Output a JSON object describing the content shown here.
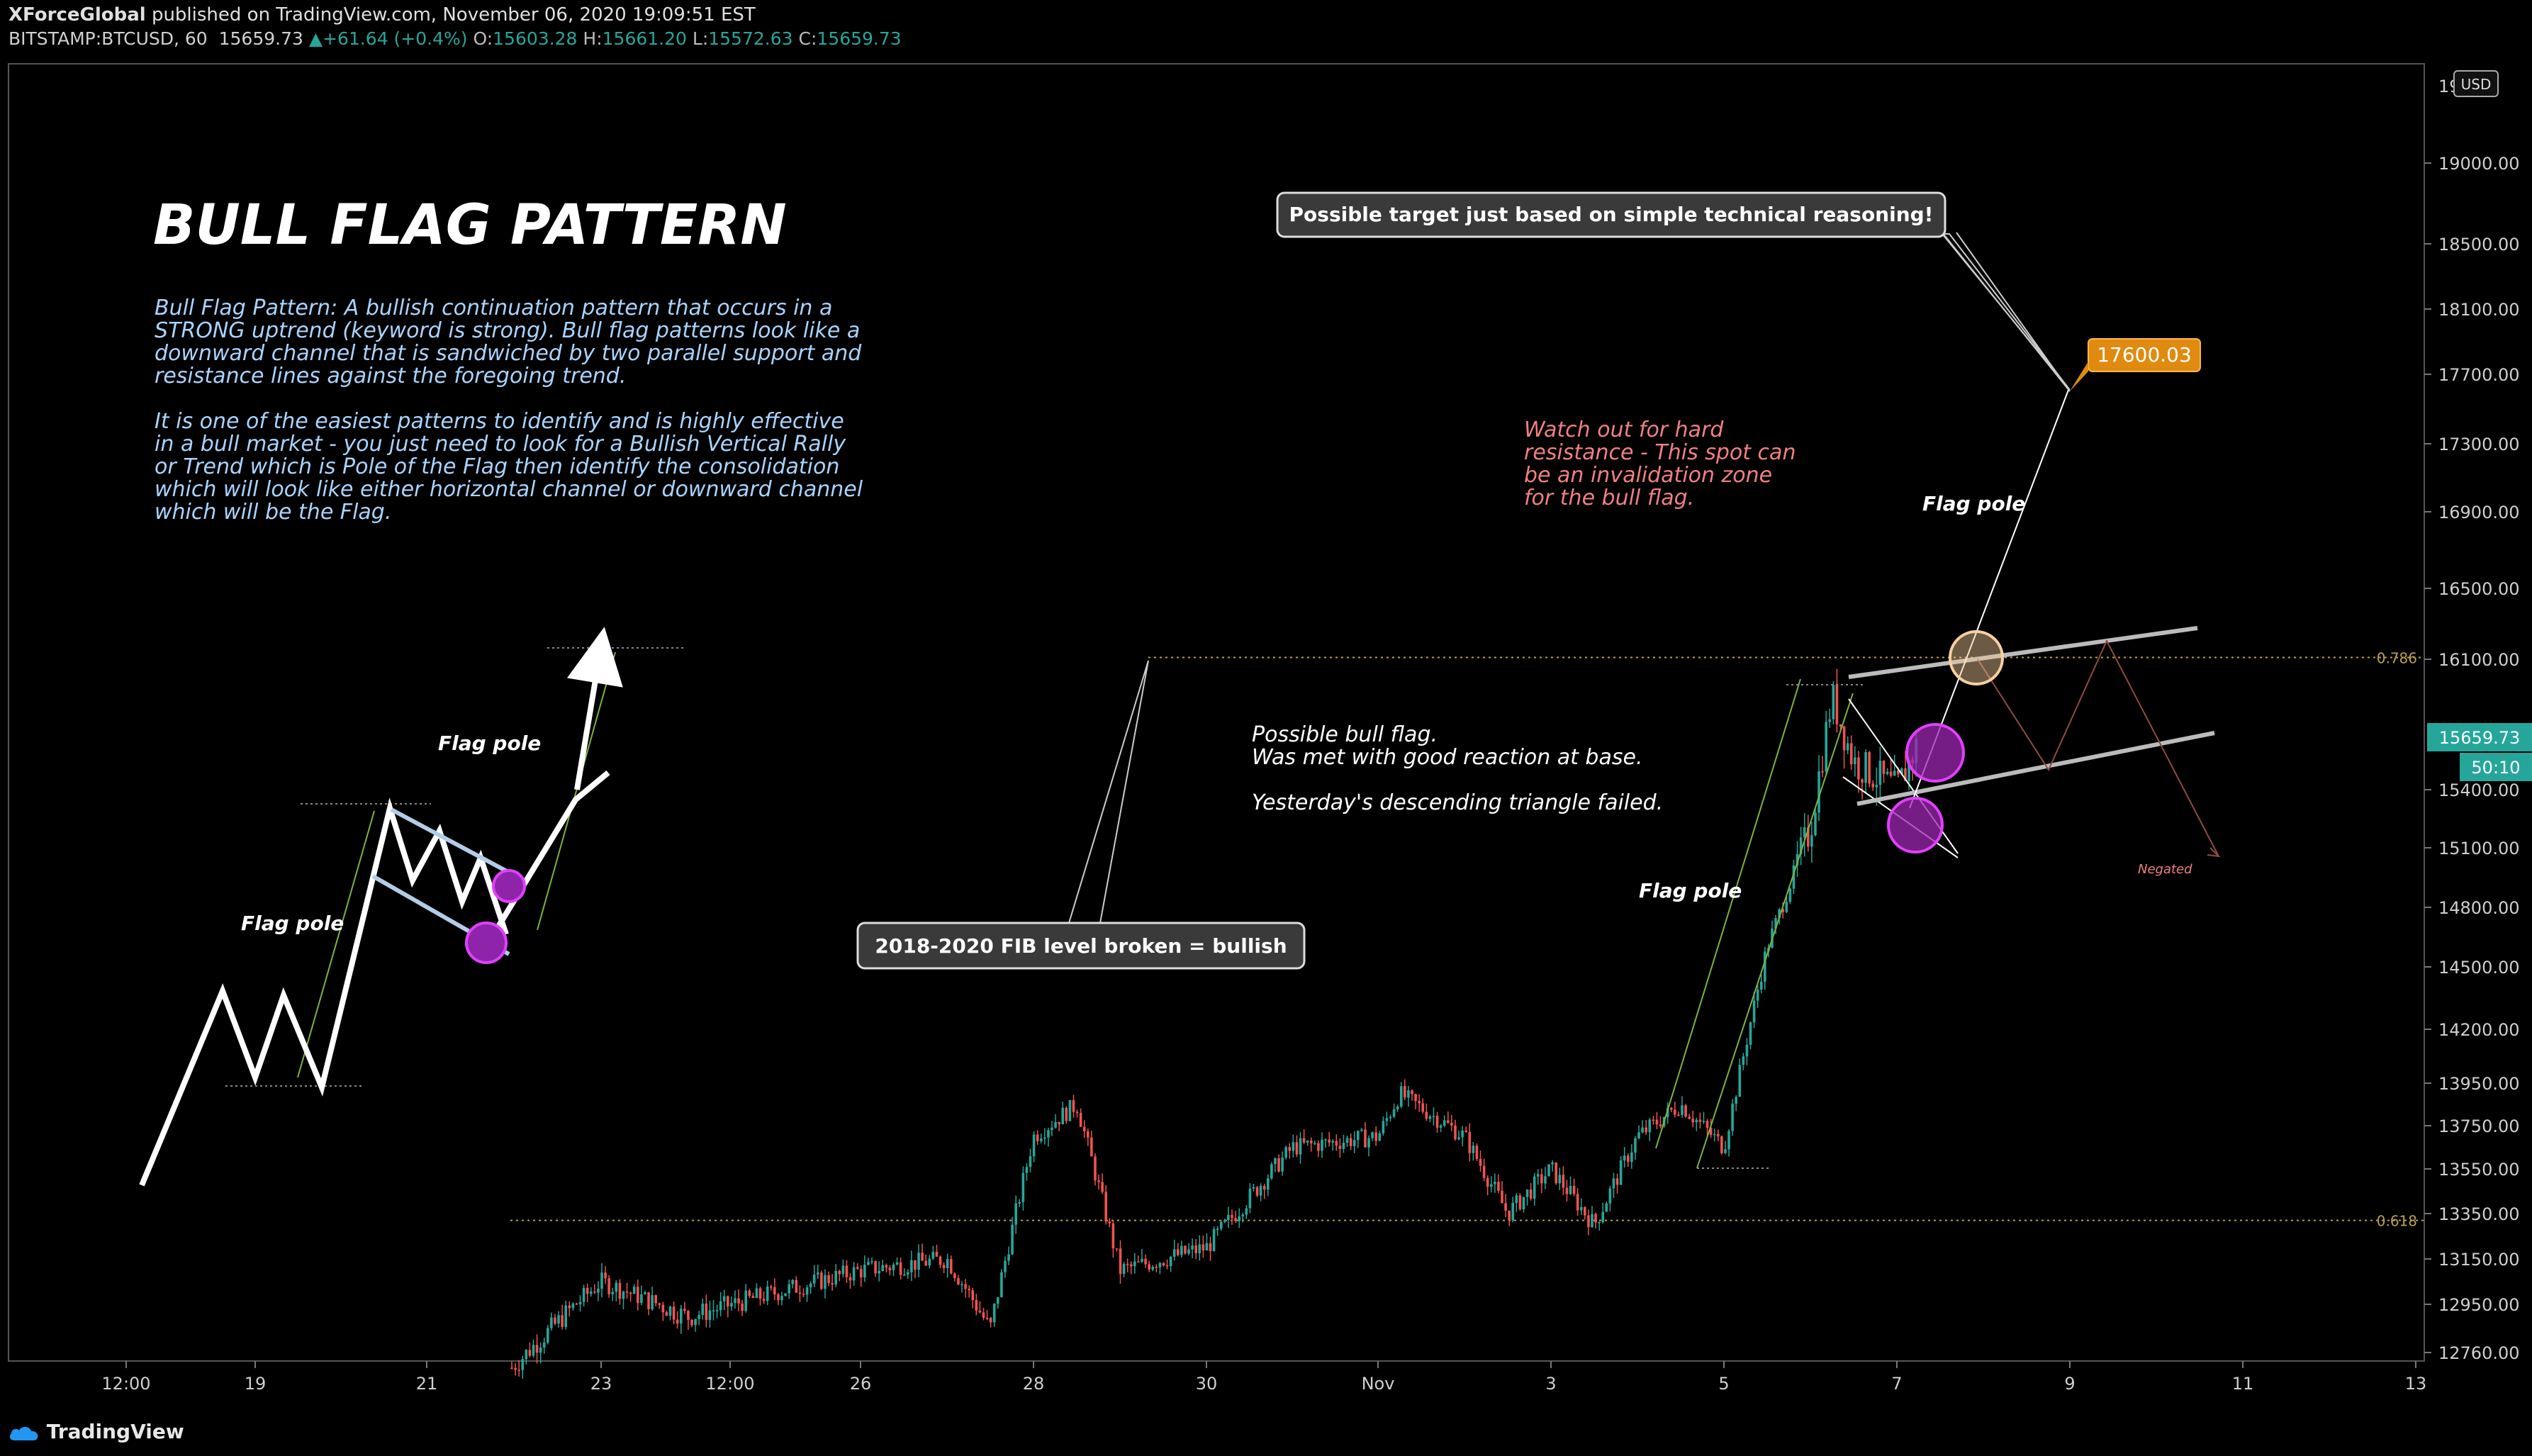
{
  "header": {
    "author": "XForceGlobal",
    "published_text": "published on TradingView.com, November 06, 2020 19:09:51 EST",
    "symbol": "BITSTAMP:BTCUSD, 60",
    "last": "15659.73",
    "change": "+61.64 (+0.4%)",
    "o_label": "O:",
    "o": "15603.28",
    "h_label": "H:",
    "h": "15661.20",
    "l_label": "L:",
    "l": "15572.63",
    "c_label": "C:",
    "c": "15659.73"
  },
  "footer": {
    "brand": "TradingView"
  },
  "colors": {
    "background": "#000000",
    "up": "#26a69a",
    "down": "#ef5350",
    "fib": "#b8a050",
    "target": "#f39c12",
    "highlight_circle": "#e040fb",
    "note_red": "#f08080"
  },
  "chart_data": {
    "type": "candlestick",
    "currency_badge": "USD",
    "y_ticks": [
      "19000.00",
      "18500.00",
      "18100.00",
      "17700.00",
      "17300.00",
      "16900.00",
      "16500.00",
      "16100.00",
      "15400.00",
      "15100.00",
      "14800.00",
      "14500.00",
      "14200.00",
      "13950.00",
      "13750.00",
      "13550.00",
      "13350.00",
      "13150.00",
      "12950.00",
      "12760.00"
    ],
    "y_tick_top_partial": "19",
    "x_ticks": [
      "12:00",
      "19",
      "21",
      "23",
      "12:00",
      "26",
      "28",
      "30",
      "Nov",
      "3",
      "5",
      "7",
      "9",
      "11",
      "13"
    ],
    "price_label": "15659.73",
    "countdown_label": "50:10",
    "fib_levels": [
      {
        "label": "0.786",
        "value": 16110
      },
      {
        "label": "0.618",
        "value": 13320
      }
    ],
    "target": {
      "label": "17600.03",
      "value": 17600.03
    },
    "price_path_keypoints": [
      {
        "t": "Oct 22",
        "price": 12700
      },
      {
        "t": "Oct 23",
        "price": 13050
      },
      {
        "t": "Oct 24",
        "price": 12900
      },
      {
        "t": "Oct 25",
        "price": 13000
      },
      {
        "t": "Oct 26",
        "price": 13100
      },
      {
        "t": "Oct 27",
        "price": 13150
      },
      {
        "t": "Oct 27 12:00",
        "price": 12850
      },
      {
        "t": "Oct 28",
        "price": 13700
      },
      {
        "t": "Oct 28 12:00",
        "price": 13850
      },
      {
        "t": "Oct 29",
        "price": 13100
      },
      {
        "t": "Oct 30",
        "price": 13200
      },
      {
        "t": "Oct 31",
        "price": 13650
      },
      {
        "t": "Nov 1",
        "price": 13700
      },
      {
        "t": "Nov 1 06:00",
        "price": 13900
      },
      {
        "t": "Nov 2",
        "price": 13700
      },
      {
        "t": "Nov 2 12:00",
        "price": 13350
      },
      {
        "t": "Nov 3",
        "price": 13550
      },
      {
        "t": "Nov 3 12:00",
        "price": 13300
      },
      {
        "t": "Nov 4",
        "price": 13700
      },
      {
        "t": "Nov 4 12:00",
        "price": 13850
      },
      {
        "t": "Nov 5",
        "price": 13650
      },
      {
        "t": "Nov 5 12:00",
        "price": 14600
      },
      {
        "t": "Nov 6",
        "price": 15200
      },
      {
        "t": "Nov 6 06:00",
        "price": 15900
      },
      {
        "t": "Nov 6 12:00",
        "price": 15550
      },
      {
        "t": "Nov 7",
        "price": 15400
      },
      {
        "t": "Nov 7 06:00",
        "price": 15660
      }
    ]
  },
  "annotations": {
    "title": "BULL FLAG PATTERN",
    "desc1_lines": [
      "Bull Flag Pattern: A bullish continuation pattern that occurs in a",
      "STRONG uptrend (keyword is strong). Bull flag patterns look like a",
      "downward channel that is sandwiched by two parallel support and",
      "resistance lines against the foregoing trend."
    ],
    "desc2_lines": [
      "It is one of the easiest patterns to identify and is highly effective",
      "in a bull market - you just need to look for a Bullish Vertical Rally",
      "or Trend which is Pole of the Flag then identify the consolidation",
      "which will look like either horizontal channel or downward channel",
      "which will be the Flag."
    ],
    "flag_pole": "Flag pole",
    "target_callout": "Possible target just based on simple technical reasoning!",
    "fib_callout": "2018-2020 FIB level broken = bullish",
    "resistance_lines": [
      "Watch out for hard",
      "resistance - This spot can",
      "be an invalidation zone",
      "for the bull flag."
    ],
    "bull_flag_lines": [
      "Possible bull flag.",
      "Was met with good reaction at base."
    ],
    "triangle_note": "Yesterday's descending triangle failed.",
    "negated": "Negated"
  }
}
